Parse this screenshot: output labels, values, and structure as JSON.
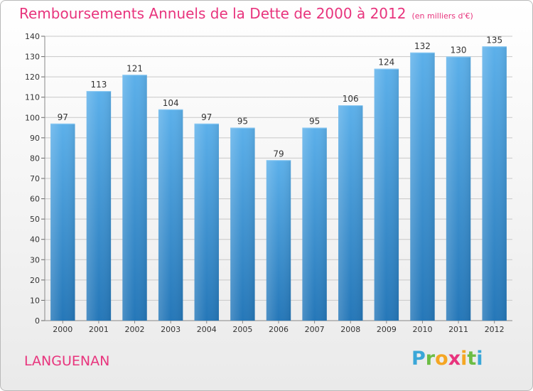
{
  "header": {
    "title": "Remboursements Annuels de la Dette de 2000 à 2012",
    "unit": "(en milliers d'€)"
  },
  "footer": {
    "town": "LANGUENAN",
    "logo_text": "Proxiti",
    "logo_letters": [
      {
        "char": "P",
        "color": "#3aa7d8"
      },
      {
        "char": "r",
        "color": "#6cbd45"
      },
      {
        "char": "o",
        "color": "#f5a623"
      },
      {
        "char": "x",
        "color": "#e8347d"
      },
      {
        "char": "i",
        "color": "#f5a623"
      },
      {
        "char": "t",
        "color": "#6cbd45"
      },
      {
        "char": "i",
        "color": "#3aa7d8"
      }
    ]
  },
  "colors": {
    "accent": "#e8347d",
    "bar_top": "#5cb0ea",
    "bar_bottom": "#2577b8",
    "grid": "#c8c8c8",
    "axis_text": "#333333"
  },
  "chart_data": {
    "type": "bar",
    "title": "Remboursements Annuels de la Dette de 2000 à 2012",
    "subtitle": "(en milliers d'€)",
    "xlabel": "",
    "ylabel": "",
    "categories": [
      "2000",
      "2001",
      "2002",
      "2003",
      "2004",
      "2005",
      "2006",
      "2007",
      "2008",
      "2009",
      "2010",
      "2011",
      "2012"
    ],
    "values": [
      97,
      113,
      121,
      104,
      97,
      95,
      79,
      95,
      106,
      124,
      132,
      130,
      135
    ],
    "ylim": [
      0,
      140
    ],
    "yticks": [
      0,
      10,
      20,
      30,
      40,
      50,
      60,
      70,
      80,
      90,
      100,
      110,
      120,
      130,
      140
    ],
    "grid": true,
    "data_labels": true
  }
}
